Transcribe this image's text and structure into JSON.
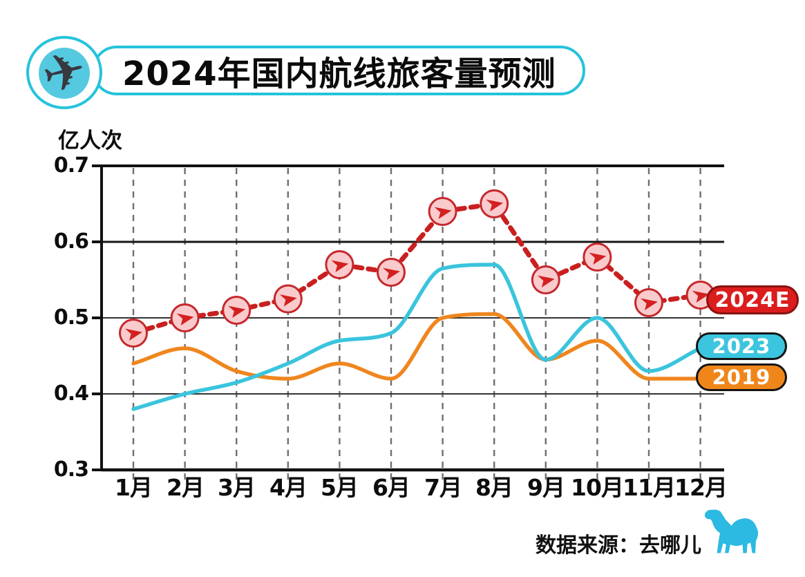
{
  "title": {
    "text": "2024年国内航线旅客量预测",
    "accent_color": "#25C3DC",
    "icon": "airplane-icon"
  },
  "y_axis": {
    "unit_label": "亿人次",
    "ticks": [
      "0.7",
      "0.6",
      "0.5",
      "0.4",
      "0.3"
    ]
  },
  "chart_data": {
    "type": "line",
    "title": "2024年国内航线旅客量预测",
    "ylabel": "亿人次",
    "ylim": [
      0.3,
      0.7
    ],
    "yticks": [
      0.7,
      0.6,
      0.5,
      0.4,
      0.3
    ],
    "grid": {
      "horizontal": true,
      "vertical_dashed": true
    },
    "legend_position": "right",
    "categories": [
      "1月",
      "2月",
      "3月",
      "4月",
      "5月",
      "6月",
      "7月",
      "8月",
      "9月",
      "10月",
      "11月",
      "12月"
    ],
    "series": [
      {
        "name": "2024E",
        "style": "dashed-with-plane-markers",
        "color": "#C9201F",
        "marker_fill": "#F9CBCC",
        "marker_border": "#C5282D",
        "values": [
          0.48,
          0.5,
          0.51,
          0.525,
          0.57,
          0.56,
          0.64,
          0.65,
          0.55,
          0.58,
          0.52,
          0.53
        ]
      },
      {
        "name": "2023",
        "style": "solid-smooth",
        "color": "#3AC4DD",
        "values": [
          0.38,
          0.4,
          0.415,
          0.44,
          0.47,
          0.48,
          0.565,
          0.57,
          0.445,
          0.5,
          0.43,
          0.46
        ]
      },
      {
        "name": "2019",
        "style": "solid-smooth",
        "color": "#EF861E",
        "values": [
          0.44,
          0.46,
          0.43,
          0.42,
          0.44,
          0.42,
          0.5,
          0.505,
          0.445,
          0.47,
          0.42,
          0.42
        ]
      }
    ]
  },
  "legend": {
    "items": [
      {
        "label": "2024E",
        "bg": "#DB1D1D",
        "border": "#8A1212"
      },
      {
        "label": "2023",
        "bg": "#3CC5DE",
        "border": "#141414"
      },
      {
        "label": "2019",
        "bg": "#F0861A",
        "border": "#141414"
      }
    ]
  },
  "source": {
    "text": "数据来源：去哪儿",
    "logo": "camel-icon",
    "logo_color": "#2CB9E2"
  }
}
